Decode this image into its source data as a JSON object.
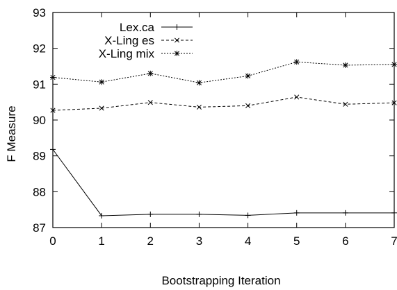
{
  "chart_data": {
    "type": "line",
    "title": "",
    "xlabel": "Bootstrapping Iteration",
    "ylabel": "F Measure",
    "xlim": [
      0,
      7
    ],
    "ylim": [
      87,
      93
    ],
    "x_ticks": [
      "0",
      "1",
      "2",
      "3",
      "4",
      "5",
      "6",
      "7"
    ],
    "y_ticks": [
      "87",
      "88",
      "89",
      "90",
      "91",
      "92",
      "93"
    ],
    "grid": false,
    "legend_position": "top-left",
    "x": [
      0,
      1,
      2,
      3,
      4,
      5,
      6,
      7
    ],
    "series": [
      {
        "name": "Lex.ca",
        "marker": "plus",
        "dash": "solid",
        "values": [
          89.18,
          87.33,
          87.37,
          87.37,
          87.34,
          87.41,
          87.41,
          87.41
        ]
      },
      {
        "name": "X-Ling es",
        "marker": "cross",
        "dash": "dashed",
        "values": [
          90.27,
          90.33,
          90.49,
          90.36,
          90.4,
          90.64,
          90.44,
          90.48
        ]
      },
      {
        "name": "X-Ling mix",
        "marker": "star",
        "dash": "dotted",
        "values": [
          91.19,
          91.06,
          91.3,
          91.04,
          91.23,
          91.62,
          91.53,
          91.55
        ]
      }
    ]
  }
}
